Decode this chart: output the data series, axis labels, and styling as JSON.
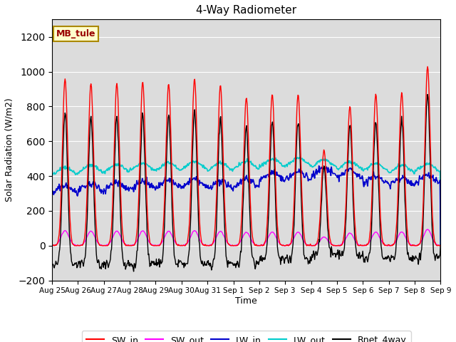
{
  "title": "4-Way Radiometer",
  "xlabel": "Time",
  "ylabel": "Solar Radiation (W/m2)",
  "ylim": [
    -200,
    1300
  ],
  "yticks": [
    -200,
    0,
    200,
    400,
    600,
    800,
    1000,
    1200
  ],
  "bg_color": "#dcdcdc",
  "annotation_text": "MB_tule",
  "annotation_box_color": "#ffffcc",
  "annotation_box_edge": "#aa8800",
  "n_days": 15,
  "sw_peaks": [
    960,
    930,
    930,
    940,
    930,
    960,
    920,
    850,
    870,
    870,
    550,
    800,
    870,
    880,
    1030
  ],
  "lw_in_base": [
    295,
    305,
    315,
    320,
    325,
    330,
    320,
    335,
    370,
    375,
    395,
    385,
    350,
    340,
    355
  ],
  "lw_out_base": [
    395,
    408,
    412,
    418,
    422,
    428,
    420,
    430,
    442,
    448,
    440,
    425,
    418,
    408,
    415
  ],
  "colors": {
    "SW_in": "#ff0000",
    "SW_out": "#ff00ff",
    "LW_in": "#0000cc",
    "LW_out": "#00cccc",
    "Rnet_4way": "#000000"
  }
}
